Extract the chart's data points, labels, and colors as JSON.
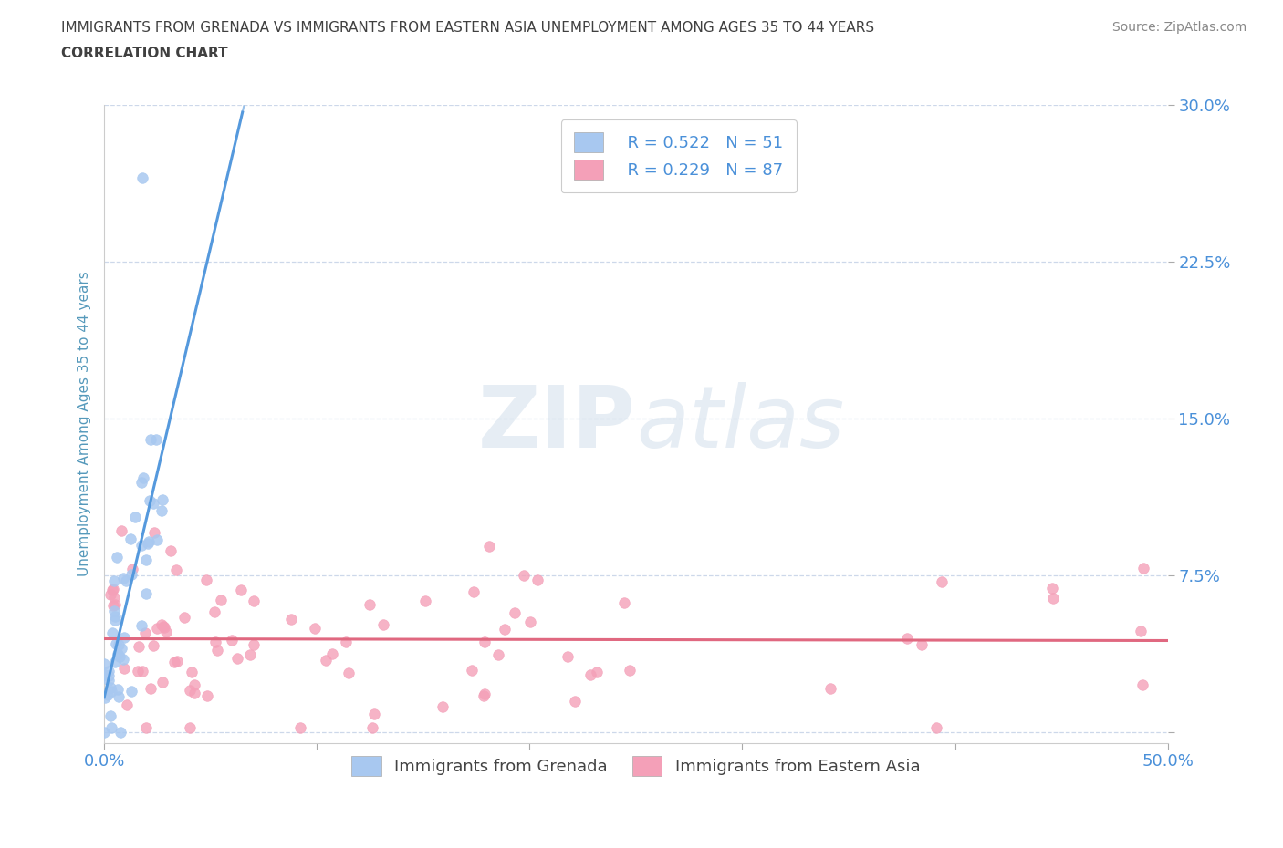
{
  "title_line1": "IMMIGRANTS FROM GRENADA VS IMMIGRANTS FROM EASTERN ASIA UNEMPLOYMENT AMONG AGES 35 TO 44 YEARS",
  "title_line2": "CORRELATION CHART",
  "source_text": "Source: ZipAtlas.com",
  "ylabel": "Unemployment Among Ages 35 to 44 years",
  "xlabel_grenada": "Immigrants from Grenada",
  "xlabel_eastern_asia": "Immigrants from Eastern Asia",
  "watermark_zip": "ZIP",
  "watermark_atlas": "atlas",
  "xlim": [
    0.0,
    0.5
  ],
  "ylim": [
    -0.005,
    0.3
  ],
  "grenada_R": 0.522,
  "grenada_N": 51,
  "eastern_asia_R": 0.229,
  "eastern_asia_N": 87,
  "grenada_color": "#a8c8f0",
  "grenada_line_color": "#5599dd",
  "eastern_asia_color": "#f4a0b8",
  "eastern_asia_line_color": "#e06880",
  "background_color": "#ffffff",
  "grid_color": "#c8d4e8",
  "title_color": "#404040",
  "tick_label_color": "#4a90d9",
  "axis_label_color": "#5599bb"
}
